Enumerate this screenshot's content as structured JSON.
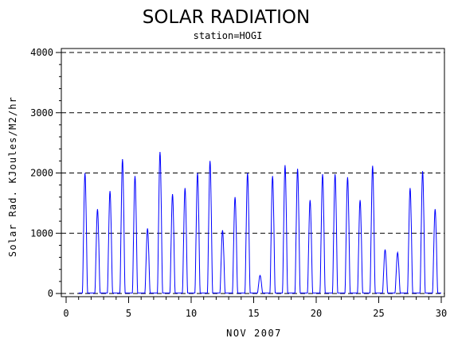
{
  "chart_data": {
    "type": "line",
    "title": "SOLAR RADIATION",
    "subtitle": "station=HOGI",
    "xlabel": "NOV 2007",
    "ylabel": "Solar Rad. KJoules/M2/hr",
    "xlim": [
      0,
      30
    ],
    "ylim": [
      0,
      4000
    ],
    "x_ticks": [
      0,
      5,
      10,
      15,
      20,
      25,
      30
    ],
    "y_ticks": [
      0,
      1000,
      2000,
      3000,
      4000
    ],
    "grid": "dashed horizontal lines at y ticks",
    "series": [
      {
        "color": "#0000ff",
        "daily_peaks": [
          {
            "day": 1,
            "peak": 2000
          },
          {
            "day": 2,
            "peak": 1400
          },
          {
            "day": 3,
            "peak": 1700
          },
          {
            "day": 4,
            "peak": 2230
          },
          {
            "day": 5,
            "peak": 1950
          },
          {
            "day": 6,
            "peak": 1080
          },
          {
            "day": 7,
            "peak": 2350
          },
          {
            "day": 8,
            "peak": 1650
          },
          {
            "day": 9,
            "peak": 1750
          },
          {
            "day": 10,
            "peak": 2000
          },
          {
            "day": 11,
            "peak": 2200
          },
          {
            "day": 12,
            "peak": 1050
          },
          {
            "day": 13,
            "peak": 1600
          },
          {
            "day": 14,
            "peak": 2000
          },
          {
            "day": 15,
            "peak": 300
          },
          {
            "day": 16,
            "peak": 1950
          },
          {
            "day": 17,
            "peak": 2130
          },
          {
            "day": 18,
            "peak": 2070
          },
          {
            "day": 19,
            "peak": 1550
          },
          {
            "day": 20,
            "peak": 1980
          },
          {
            "day": 21,
            "peak": 1980
          },
          {
            "day": 22,
            "peak": 1930
          },
          {
            "day": 23,
            "peak": 1550
          },
          {
            "day": 24,
            "peak": 2120
          },
          {
            "day": 25,
            "peak": 730
          },
          {
            "day": 26,
            "peak": 680
          },
          {
            "day": 27,
            "peak": 1750
          },
          {
            "day": 28,
            "peak": 2030
          },
          {
            "day": 29,
            "peak": 1400
          }
        ]
      }
    ]
  }
}
